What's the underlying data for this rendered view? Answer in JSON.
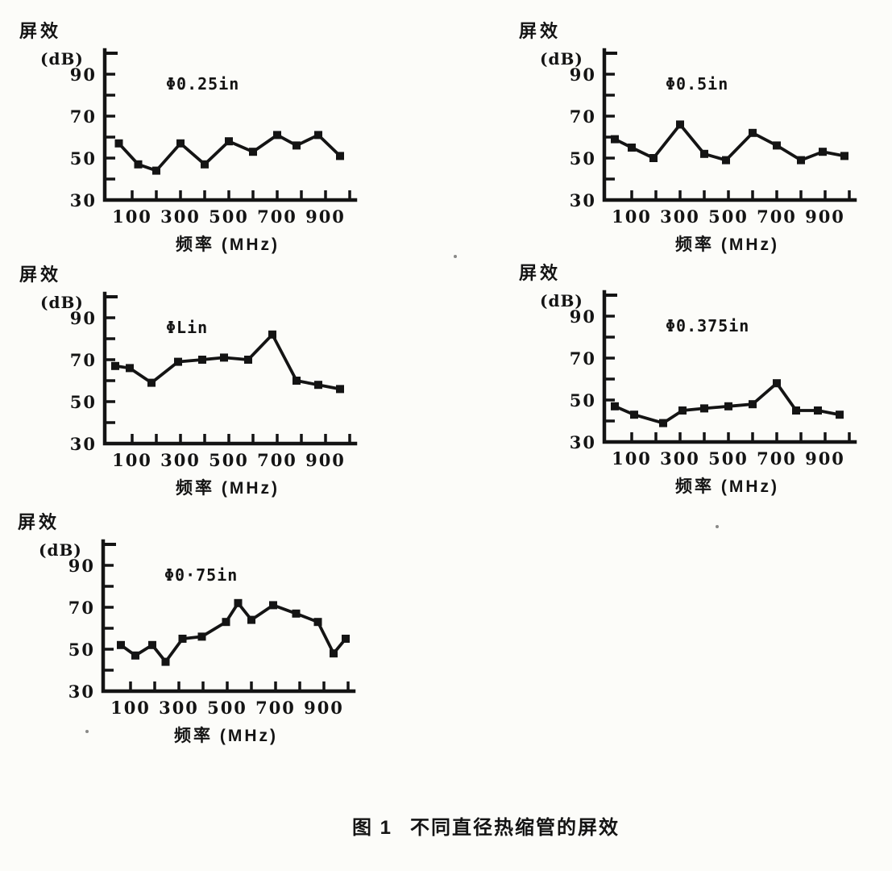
{
  "style": {
    "ink": "#141414",
    "paper": "#fcfcf9"
  },
  "caption": {
    "label": "图 1",
    "title": "不同直径热缩管的屏效"
  },
  "chart_data": [
    {
      "type": "line",
      "title": "Φ0.25in",
      "ylabel_line1": "屏效",
      "ylabel_line2": "(dB)",
      "xlabel": "频率 (MHz)",
      "x": [
        45,
        125,
        200,
        300,
        400,
        500,
        600,
        700,
        780,
        870,
        960
      ],
      "values": [
        57,
        47,
        44,
        57,
        47,
        58,
        53,
        61,
        56,
        61,
        51
      ],
      "xlim": [
        0,
        1020
      ],
      "ylim": [
        30,
        100
      ],
      "xticks": [
        100,
        200,
        300,
        400,
        500,
        600,
        700,
        800,
        900,
        1000
      ],
      "xtick_labels": [
        100,
        300,
        500,
        700,
        900
      ],
      "yticks": [
        40,
        50,
        60,
        70,
        80,
        90
      ],
      "ytick_labels": [
        90,
        70,
        50,
        30
      ],
      "marker": "square",
      "grid": false,
      "legend": "none"
    },
    {
      "type": "line",
      "title": "Φ0.5in",
      "ylabel_line1": "屏效",
      "ylabel_line2": "(dB)",
      "xlabel": "频率 (MHz)",
      "x": [
        30,
        100,
        190,
        300,
        400,
        490,
        600,
        700,
        800,
        890,
        980
      ],
      "values": [
        59,
        55,
        50,
        66,
        52,
        49,
        62,
        56,
        49,
        53,
        51
      ],
      "xlim": [
        0,
        1020
      ],
      "ylim": [
        30,
        100
      ],
      "xticks": [
        100,
        200,
        300,
        400,
        500,
        600,
        700,
        800,
        900,
        1000
      ],
      "xtick_labels": [
        100,
        300,
        500,
        700,
        900
      ],
      "yticks": [
        40,
        50,
        60,
        70,
        80,
        90
      ],
      "ytick_labels": [
        90,
        70,
        50,
        30
      ],
      "marker": "square",
      "grid": false,
      "legend": "none"
    },
    {
      "type": "line",
      "title": "ΦLin",
      "ylabel_line1": "屏效",
      "ylabel_line2": "(dB)",
      "xlabel": "频率 (MHz)",
      "x": [
        30,
        90,
        180,
        290,
        390,
        480,
        580,
        680,
        780,
        870,
        960
      ],
      "values": [
        67,
        66,
        59,
        69,
        70,
        71,
        70,
        82,
        60,
        58,
        56
      ],
      "xlim": [
        0,
        1020
      ],
      "ylim": [
        30,
        100
      ],
      "xticks": [
        100,
        200,
        300,
        400,
        500,
        600,
        700,
        800,
        900,
        1000
      ],
      "xtick_labels": [
        100,
        300,
        500,
        700,
        900
      ],
      "yticks": [
        40,
        50,
        60,
        70,
        80,
        90
      ],
      "ytick_labels": [
        90,
        70,
        50,
        30
      ],
      "marker": "square",
      "grid": false,
      "legend": "none"
    },
    {
      "type": "line",
      "title": "Φ0.375in",
      "ylabel_line1": "屏效",
      "ylabel_line2": "(dB)",
      "xlabel": "频率 (MHz)",
      "x": [
        30,
        110,
        230,
        310,
        400,
        500,
        600,
        700,
        780,
        870,
        960
      ],
      "values": [
        47,
        43,
        39,
        45,
        46,
        47,
        48,
        58,
        45,
        45,
        43
      ],
      "xlim": [
        0,
        1020
      ],
      "ylim": [
        30,
        100
      ],
      "xticks": [
        100,
        200,
        300,
        400,
        500,
        600,
        700,
        800,
        900,
        1000
      ],
      "xtick_labels": [
        100,
        300,
        500,
        700,
        900
      ],
      "yticks": [
        40,
        50,
        60,
        70,
        80,
        90
      ],
      "ytick_labels": [
        90,
        70,
        50,
        30
      ],
      "marker": "square",
      "grid": false,
      "legend": "none"
    },
    {
      "type": "line",
      "title": "Φ0·75in",
      "ylabel_line1": "屏效",
      "ylabel_line2": "(dB)",
      "xlabel": "频率 (MHz)",
      "x": [
        60,
        120,
        190,
        245,
        315,
        395,
        495,
        545,
        600,
        690,
        785,
        875,
        940,
        990
      ],
      "values": [
        52,
        47,
        52,
        44,
        55,
        56,
        63,
        72,
        64,
        71,
        67,
        63,
        48,
        55
      ],
      "xlim": [
        0,
        1020
      ],
      "ylim": [
        30,
        100
      ],
      "xticks": [
        100,
        200,
        300,
        400,
        500,
        600,
        700,
        800,
        900,
        1000
      ],
      "xtick_labels": [
        100,
        300,
        500,
        700,
        900
      ],
      "yticks": [
        40,
        50,
        60,
        70,
        80,
        90
      ],
      "ytick_labels": [
        90,
        70,
        50,
        30
      ],
      "marker": "square",
      "grid": false,
      "legend": "none"
    }
  ]
}
